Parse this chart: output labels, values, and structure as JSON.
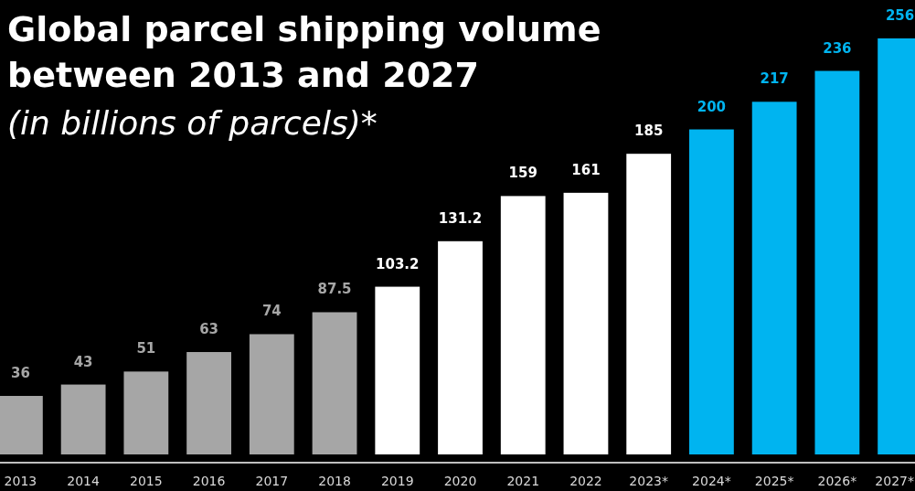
{
  "chart_data": {
    "type": "bar",
    "title": "Global parcel shipping volume between 2013 and 2027",
    "subtitle": "(in billions of parcels)*",
    "categories": [
      "2013",
      "2014",
      "2015",
      "2016",
      "2017",
      "2018",
      "2019",
      "2020",
      "2021",
      "2022",
      "2023*",
      "2024*",
      "2025*",
      "2026*",
      "2027*"
    ],
    "values": [
      36,
      43,
      51,
      63,
      74,
      87.5,
      103.2,
      131.2,
      159,
      161,
      185,
      200,
      217,
      236,
      256
    ],
    "colors": [
      "#a6a6a6",
      "#a6a6a6",
      "#a6a6a6",
      "#a6a6a6",
      "#a6a6a6",
      "#a6a6a6",
      "#ffffff",
      "#ffffff",
      "#ffffff",
      "#ffffff",
      "#ffffff",
      "#00b4f0",
      "#00b4f0",
      "#00b4f0",
      "#00b4f0"
    ],
    "data_labels": true
  }
}
